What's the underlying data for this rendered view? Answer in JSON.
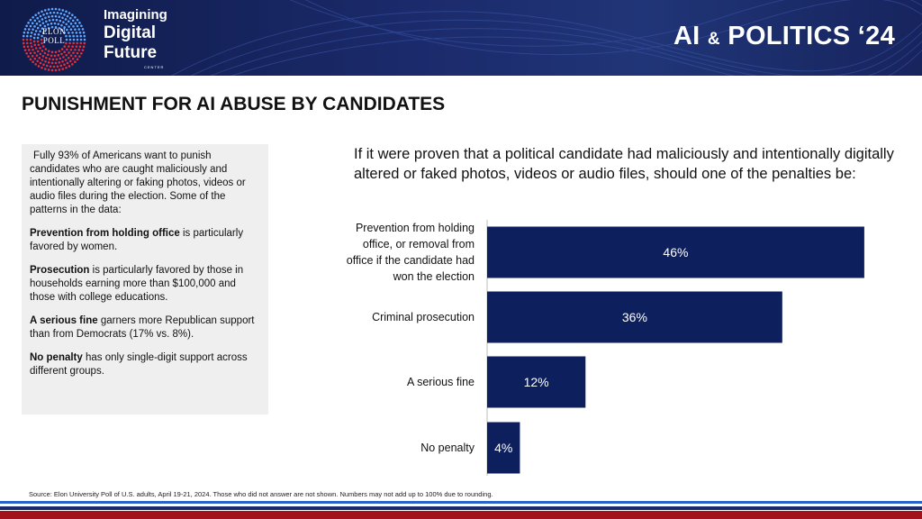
{
  "header": {
    "brand_line1": "Imagining",
    "brand_line2": "Digital",
    "brand_line3": "Future",
    "brand_center": "CENTER",
    "poll_line1": "ELON",
    "poll_line2": "POLL",
    "series_ai": "AI",
    "series_amp": "&",
    "series_rest": "POLITICS ‘24"
  },
  "page_title": "PUNISHMENT FOR AI ABUSE BY CANDIDATES",
  "notes": {
    "intro": "Fully 93% of Americans want to punish candidates who are caught maliciously and intentionally altering or faking photos, videos or audio files during the election. Some of the patterns in the data:",
    "p1_bold": "Prevention from holding office",
    "p1_rest": " is particularly favored by women.",
    "p2_bold": "Prosecution",
    "p2_rest": " is particularly favored by those in households earning more than $100,000 and those with college educations.",
    "p3_bold": "A serious fine",
    "p3_rest": " garners more Republican support than from Democrats (17% vs. 8%).",
    "p4_bold": "No penalty",
    "p4_rest": " has only single-digit support across different groups."
  },
  "colors": {
    "bar": "#0d1f5c",
    "banner": "#1b2a6b",
    "stripe_red": "#a3121c",
    "stripe_blue": "#2a62c9"
  },
  "chart_data": {
    "type": "bar",
    "orientation": "horizontal",
    "title": "If it were proven that a political candidate had maliciously and intentionally digitally altered or faked photos, videos or audio files, should one of the penalties be:",
    "categories": [
      [
        "Prevention from holding",
        "office, or removal from",
        "office if the candidate had",
        "won the election"
      ],
      [
        "Criminal prosecution"
      ],
      [
        "A serious fine"
      ],
      [
        "No penalty"
      ]
    ],
    "values": [
      46,
      36,
      12,
      4
    ],
    "value_labels": [
      "46%",
      "36%",
      "12%",
      "4%"
    ],
    "xlim": [
      0,
      47
    ],
    "grid": false,
    "xlabel": "",
    "ylabel": ""
  },
  "source": "Source: Elon University Poll of U.S. adults, April 19-21, 2024. Those who did not answer are not shown. Numbers may not add up to 100% due to rounding."
}
